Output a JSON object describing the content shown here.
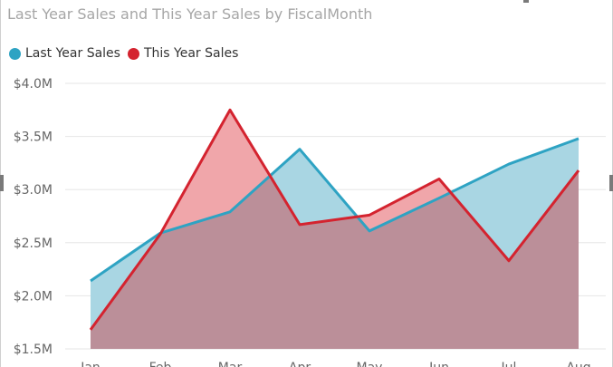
{
  "title": "Last Year Sales and This Year Sales by FiscalMonth",
  "colors": {
    "last_year_line": "#2ea3c3",
    "last_year_fill": "#a9d6e3",
    "this_year_line": "#d4232f",
    "this_year_fill": "#f0a6aa",
    "overlap_fill": "#bb8f99",
    "grid": "#e6e6e6",
    "axis_text": "#666666"
  },
  "chart_data": {
    "type": "area",
    "title": "Last Year Sales and This Year Sales by FiscalMonth",
    "categories": [
      "Jan",
      "Feb",
      "Mar",
      "Apr",
      "May",
      "Jun",
      "Jul",
      "Aug"
    ],
    "series": [
      {
        "name": "Last Year Sales",
        "values": [
          2.14,
          2.59,
          2.79,
          3.38,
          2.61,
          2.92,
          3.24,
          3.48
        ]
      },
      {
        "name": "This Year Sales",
        "values": [
          1.68,
          2.58,
          3.75,
          2.67,
          2.76,
          3.1,
          2.33,
          3.18
        ]
      }
    ],
    "units": "$M",
    "ylim": [
      1.5,
      4.0
    ],
    "yticks": [
      {
        "value": 4.0,
        "label": "$4.0M"
      },
      {
        "value": 3.5,
        "label": "$3.5M"
      },
      {
        "value": 3.0,
        "label": "$3.0M"
      },
      {
        "value": 2.5,
        "label": "$2.5M"
      },
      {
        "value": 2.0,
        "label": "$2.0M"
      },
      {
        "value": 1.5,
        "label": "$1.5M"
      }
    ],
    "grid": true,
    "legend": "top-left"
  }
}
